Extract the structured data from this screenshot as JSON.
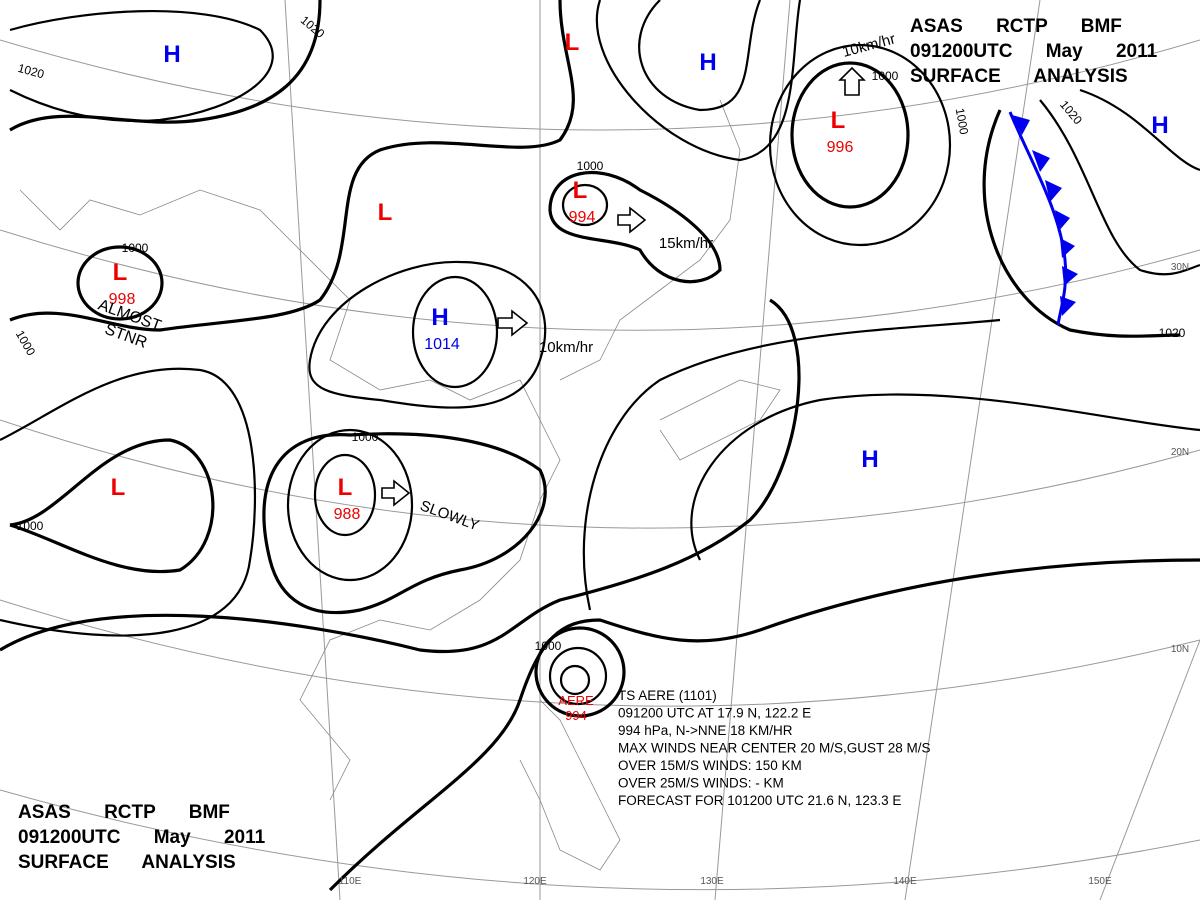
{
  "header_top": {
    "lines": [
      "ASAS RCTP BMF",
      "091200UTC May 2011",
      "SURFACE ANALYSIS"
    ]
  },
  "header_bottom": {
    "lines": [
      "ASAS RCTP BMF",
      "091200UTC May 2011",
      "SURFACE ANALYSIS"
    ]
  },
  "centers": [
    {
      "symbol": "H"
    },
    {
      "symbol": "L"
    },
    {
      "symbol": "H"
    },
    {
      "symbol": "L",
      "value": 996
    },
    {
      "symbol": "H"
    },
    {
      "symbol": "L"
    },
    {
      "symbol": "L",
      "value": 994
    },
    {
      "symbol": "L",
      "value": 998
    },
    {
      "symbol": "H",
      "value": 1014
    },
    {
      "symbol": "L"
    },
    {
      "symbol": "L",
      "value": 988
    },
    {
      "symbol": "H"
    },
    {
      "symbol": "AERE",
      "value": 994
    }
  ],
  "isobar_labels": [
    "1020",
    "1020",
    "1000",
    "1000",
    "1000",
    "1000",
    "1000",
    "1000",
    "1000",
    "1020",
    "1020",
    "1000"
  ],
  "motions": [
    "10km/hr",
    "15km/hr",
    "10km/hr",
    "SLOWLY"
  ],
  "stationary": [
    "ALMOST",
    "STNR"
  ],
  "typhoon": {
    "lines": [
      "TS AERE (1101)",
      "091200 UTC AT 17.9 N, 122.2 E",
      "994 hPa, N->NNE 18 KM/HR",
      "MAX WINDS NEAR CENTER 20 M/S,GUST 28 M/S",
      "OVER 15M/S WINDS: 150 KM",
      "OVER 25M/S WINDS: - KM",
      "FORECAST FOR 101200 UTC 21.6 N, 123.3 E"
    ]
  },
  "longitudes": [
    "110E",
    "120E",
    "130E",
    "140E",
    "150E"
  ],
  "latitudes": [
    "30N",
    "20N",
    "10N"
  ]
}
